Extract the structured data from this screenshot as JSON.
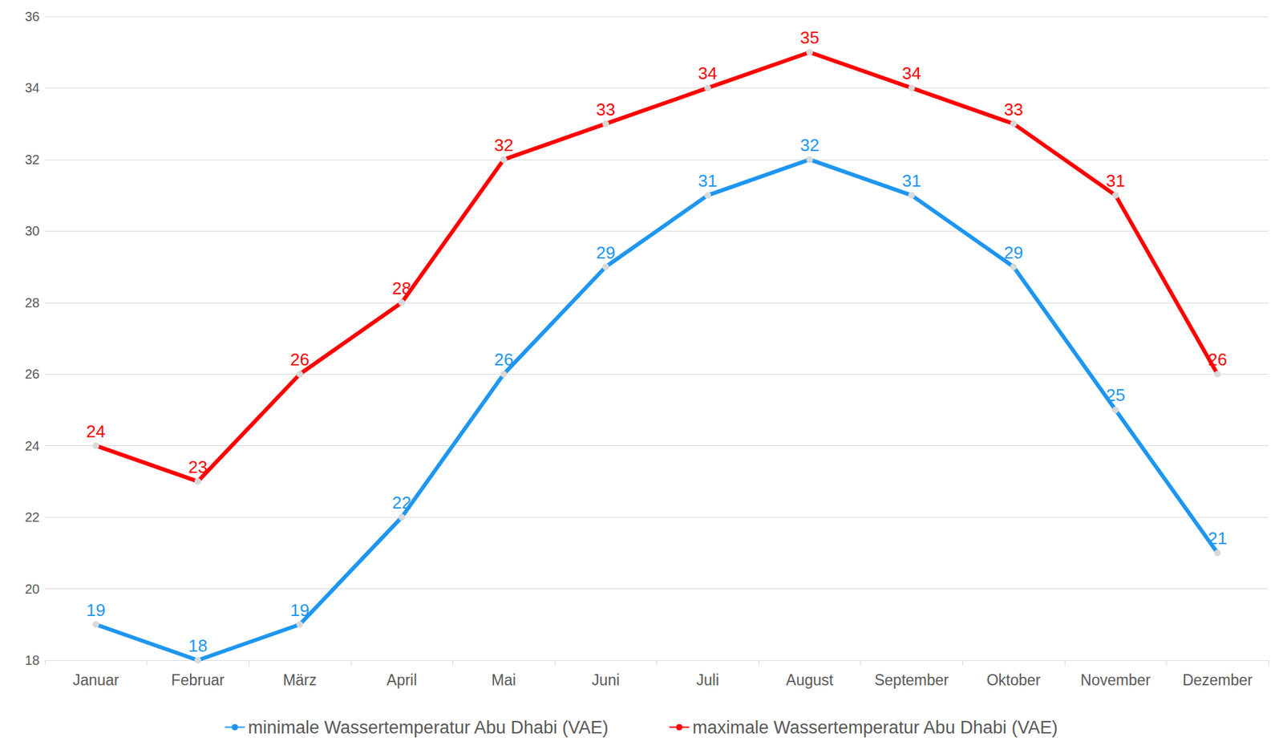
{
  "chart_data": {
    "type": "line",
    "categories": [
      "Januar",
      "Februar",
      "März",
      "April",
      "Mai",
      "Juni",
      "Juli",
      "August",
      "September",
      "Oktober",
      "November",
      "Dezember"
    ],
    "series": [
      {
        "name": "minimale Wassertemperatur Abu Dhabi (VAE)",
        "color": "#1e96f0",
        "marker": "circle",
        "values": [
          19,
          18,
          19,
          22,
          26,
          29,
          31,
          32,
          31,
          29,
          25,
          21
        ]
      },
      {
        "name": "maximale Wassertemperatur Abu Dhabi (VAE)",
        "color": "#ff0000",
        "marker": "circle",
        "values": [
          24,
          23,
          26,
          28,
          32,
          33,
          34,
          35,
          34,
          33,
          31,
          26
        ]
      }
    ],
    "ylim": [
      18,
      36
    ],
    "yticks": [
      18,
      20,
      22,
      24,
      26,
      28,
      30,
      32,
      34,
      36
    ],
    "grid": true,
    "legend": "bottom",
    "data_labels": true
  }
}
